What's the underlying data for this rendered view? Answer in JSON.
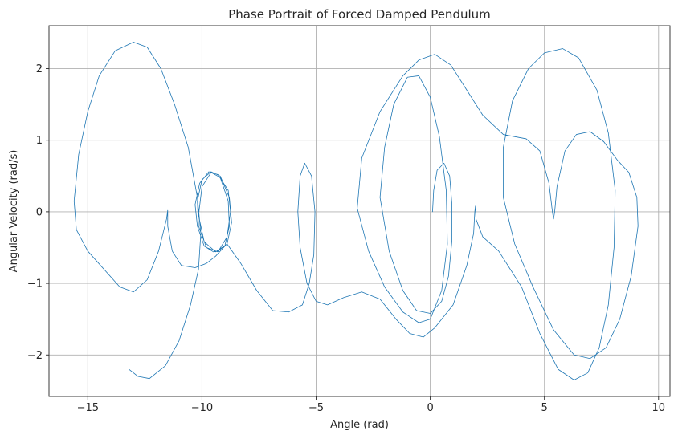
{
  "chart_data": {
    "type": "line",
    "title": "Phase Portrait of Forced Damped Pendulum",
    "xlabel": "Angle (rad)",
    "ylabel": "Angular Velocity (rad/s)",
    "xlim": [
      -16.7,
      10.5
    ],
    "ylim": [
      -2.58,
      2.6
    ],
    "xticks": [
      -15,
      -10,
      -5,
      0,
      5,
      10
    ],
    "xtick_labels": [
      "−15",
      "−10",
      "−5",
      "0",
      "5",
      "10"
    ],
    "yticks": [
      -2,
      -1,
      0,
      1,
      2
    ],
    "ytick_labels": [
      "−2",
      "−1",
      "0",
      "1",
      "2"
    ],
    "grid": true,
    "line_color": "#1f77b4",
    "series": [
      {
        "points": [
          [
            0.1,
            0.0
          ],
          [
            0.15,
            0.3
          ],
          [
            0.3,
            0.58
          ],
          [
            0.6,
            0.68
          ],
          [
            0.85,
            0.5
          ],
          [
            0.95,
            0.1
          ],
          [
            0.95,
            -0.4
          ],
          [
            0.8,
            -0.9
          ],
          [
            0.5,
            -1.25
          ],
          [
            0.0,
            -1.42
          ],
          [
            -0.6,
            -1.38
          ],
          [
            -1.2,
            -1.1
          ],
          [
            -1.8,
            -0.55
          ],
          [
            -2.2,
            0.2
          ],
          [
            -2.0,
            0.9
          ],
          [
            -1.6,
            1.5
          ],
          [
            -1.0,
            1.88
          ],
          [
            -0.5,
            1.9
          ],
          [
            0.0,
            1.6
          ],
          [
            0.4,
            1.05
          ],
          [
            0.7,
            0.3
          ],
          [
            0.75,
            -0.45
          ],
          [
            0.5,
            -1.1
          ],
          [
            0.0,
            -1.5
          ],
          [
            -0.5,
            -1.55
          ],
          [
            -1.2,
            -1.4
          ],
          [
            -2.0,
            -1.05
          ],
          [
            -2.7,
            -0.55
          ],
          [
            -3.2,
            0.05
          ],
          [
            -3.0,
            0.75
          ],
          [
            -2.2,
            1.4
          ],
          [
            -1.2,
            1.9
          ],
          [
            -0.5,
            2.12
          ],
          [
            0.2,
            2.2
          ],
          [
            0.9,
            2.05
          ],
          [
            1.6,
            1.7
          ],
          [
            2.3,
            1.35
          ],
          [
            3.2,
            1.08
          ],
          [
            4.2,
            1.02
          ],
          [
            4.8,
            0.85
          ],
          [
            5.2,
            0.4
          ],
          [
            5.35,
            0.0
          ],
          [
            5.4,
            -0.1
          ],
          [
            5.45,
            0.0
          ],
          [
            5.55,
            0.35
          ],
          [
            5.9,
            0.85
          ],
          [
            6.4,
            1.08
          ],
          [
            7.0,
            1.12
          ],
          [
            7.6,
            0.98
          ],
          [
            8.2,
            0.72
          ],
          [
            8.7,
            0.55
          ],
          [
            9.05,
            0.2
          ],
          [
            9.1,
            -0.2
          ],
          [
            8.8,
            -0.9
          ],
          [
            8.3,
            -1.5
          ],
          [
            7.7,
            -1.9
          ],
          [
            7.0,
            -2.05
          ],
          [
            6.3,
            -2.0
          ],
          [
            5.4,
            -1.65
          ],
          [
            4.5,
            -1.05
          ],
          [
            3.7,
            -0.45
          ],
          [
            3.2,
            0.2
          ],
          [
            3.2,
            0.9
          ],
          [
            3.6,
            1.55
          ],
          [
            4.3,
            2.0
          ],
          [
            5.0,
            2.22
          ],
          [
            5.8,
            2.28
          ],
          [
            6.5,
            2.15
          ],
          [
            7.3,
            1.7
          ],
          [
            7.8,
            1.1
          ],
          [
            8.1,
            0.3
          ],
          [
            8.05,
            -0.5
          ],
          [
            7.8,
            -1.3
          ],
          [
            7.4,
            -1.9
          ],
          [
            6.9,
            -2.25
          ],
          [
            6.3,
            -2.35
          ],
          [
            5.6,
            -2.2
          ],
          [
            4.8,
            -1.7
          ],
          [
            4.0,
            -1.05
          ],
          [
            3.0,
            -0.55
          ],
          [
            2.3,
            -0.35
          ],
          [
            2.0,
            -0.1
          ],
          [
            1.98,
            0.08
          ],
          [
            1.95,
            0.0
          ],
          [
            1.9,
            -0.3
          ],
          [
            1.6,
            -0.75
          ],
          [
            1.0,
            -1.3
          ],
          [
            0.2,
            -1.62
          ],
          [
            -0.3,
            -1.75
          ],
          [
            -0.9,
            -1.7
          ],
          [
            -1.5,
            -1.5
          ],
          [
            -2.2,
            -1.22
          ],
          [
            -3.0,
            -1.12
          ],
          [
            -3.8,
            -1.2
          ],
          [
            -4.5,
            -1.3
          ],
          [
            -5.0,
            -1.25
          ],
          [
            -5.4,
            -1.0
          ],
          [
            -5.7,
            -0.5
          ],
          [
            -5.8,
            0.0
          ],
          [
            -5.7,
            0.5
          ],
          [
            -5.5,
            0.68
          ],
          [
            -5.2,
            0.5
          ],
          [
            -5.05,
            0.0
          ],
          [
            -5.1,
            -0.6
          ],
          [
            -5.3,
            -1.0
          ],
          [
            -5.6,
            -1.3
          ],
          [
            -6.2,
            -1.4
          ],
          [
            -6.9,
            -1.38
          ],
          [
            -7.6,
            -1.1
          ],
          [
            -8.3,
            -0.72
          ],
          [
            -8.9,
            -0.45
          ],
          [
            -9.3,
            -0.55
          ],
          [
            -9.5,
            -0.56
          ],
          [
            -9.9,
            -0.48
          ],
          [
            -10.2,
            -0.2
          ],
          [
            -10.3,
            0.1
          ],
          [
            -10.1,
            0.4
          ],
          [
            -9.7,
            0.56
          ],
          [
            -9.3,
            0.52
          ],
          [
            -8.85,
            0.3
          ],
          [
            -8.75,
            0.0
          ],
          [
            -8.9,
            -0.35
          ],
          [
            -9.3,
            -0.56
          ],
          [
            -9.8,
            -0.5
          ],
          [
            -10.15,
            -0.2
          ],
          [
            -10.2,
            0.15
          ],
          [
            -10.0,
            0.45
          ],
          [
            -9.6,
            0.56
          ],
          [
            -9.2,
            0.5
          ],
          [
            -8.8,
            0.2
          ],
          [
            -8.7,
            -0.15
          ],
          [
            -8.9,
            -0.45
          ],
          [
            -9.4,
            -0.56
          ],
          [
            -9.9,
            -0.42
          ],
          [
            -10.15,
            -0.05
          ],
          [
            -10.0,
            0.35
          ],
          [
            -9.6,
            0.55
          ],
          [
            -9.2,
            0.48
          ],
          [
            -8.85,
            0.15
          ],
          [
            -8.8,
            -0.2
          ],
          [
            -9.0,
            -0.48
          ],
          [
            -9.4,
            -0.62
          ],
          [
            -9.8,
            -0.72
          ],
          [
            -10.3,
            -0.78
          ],
          [
            -10.9,
            -0.75
          ],
          [
            -11.3,
            -0.55
          ],
          [
            -11.5,
            -0.2
          ],
          [
            -11.5,
            0.02
          ],
          [
            -11.55,
            -0.1
          ],
          [
            -11.9,
            -0.55
          ],
          [
            -12.4,
            -0.95
          ],
          [
            -13.0,
            -1.12
          ],
          [
            -13.6,
            -1.05
          ],
          [
            -14.3,
            -0.8
          ],
          [
            -15.0,
            -0.55
          ],
          [
            -15.5,
            -0.25
          ],
          [
            -15.6,
            0.15
          ],
          [
            -15.4,
            0.8
          ],
          [
            -15.0,
            1.4
          ],
          [
            -14.5,
            1.9
          ],
          [
            -13.8,
            2.25
          ],
          [
            -13.0,
            2.37
          ],
          [
            -12.4,
            2.3
          ],
          [
            -11.8,
            2.0
          ],
          [
            -11.2,
            1.5
          ],
          [
            -10.6,
            0.9
          ],
          [
            -10.2,
            0.2
          ],
          [
            -10.05,
            -0.3
          ],
          [
            -10.15,
            -0.8
          ],
          [
            -10.5,
            -1.3
          ],
          [
            -11.0,
            -1.8
          ],
          [
            -11.6,
            -2.15
          ],
          [
            -12.3,
            -2.33
          ],
          [
            -12.8,
            -2.3
          ],
          [
            -13.2,
            -2.2
          ]
        ]
      }
    ]
  }
}
